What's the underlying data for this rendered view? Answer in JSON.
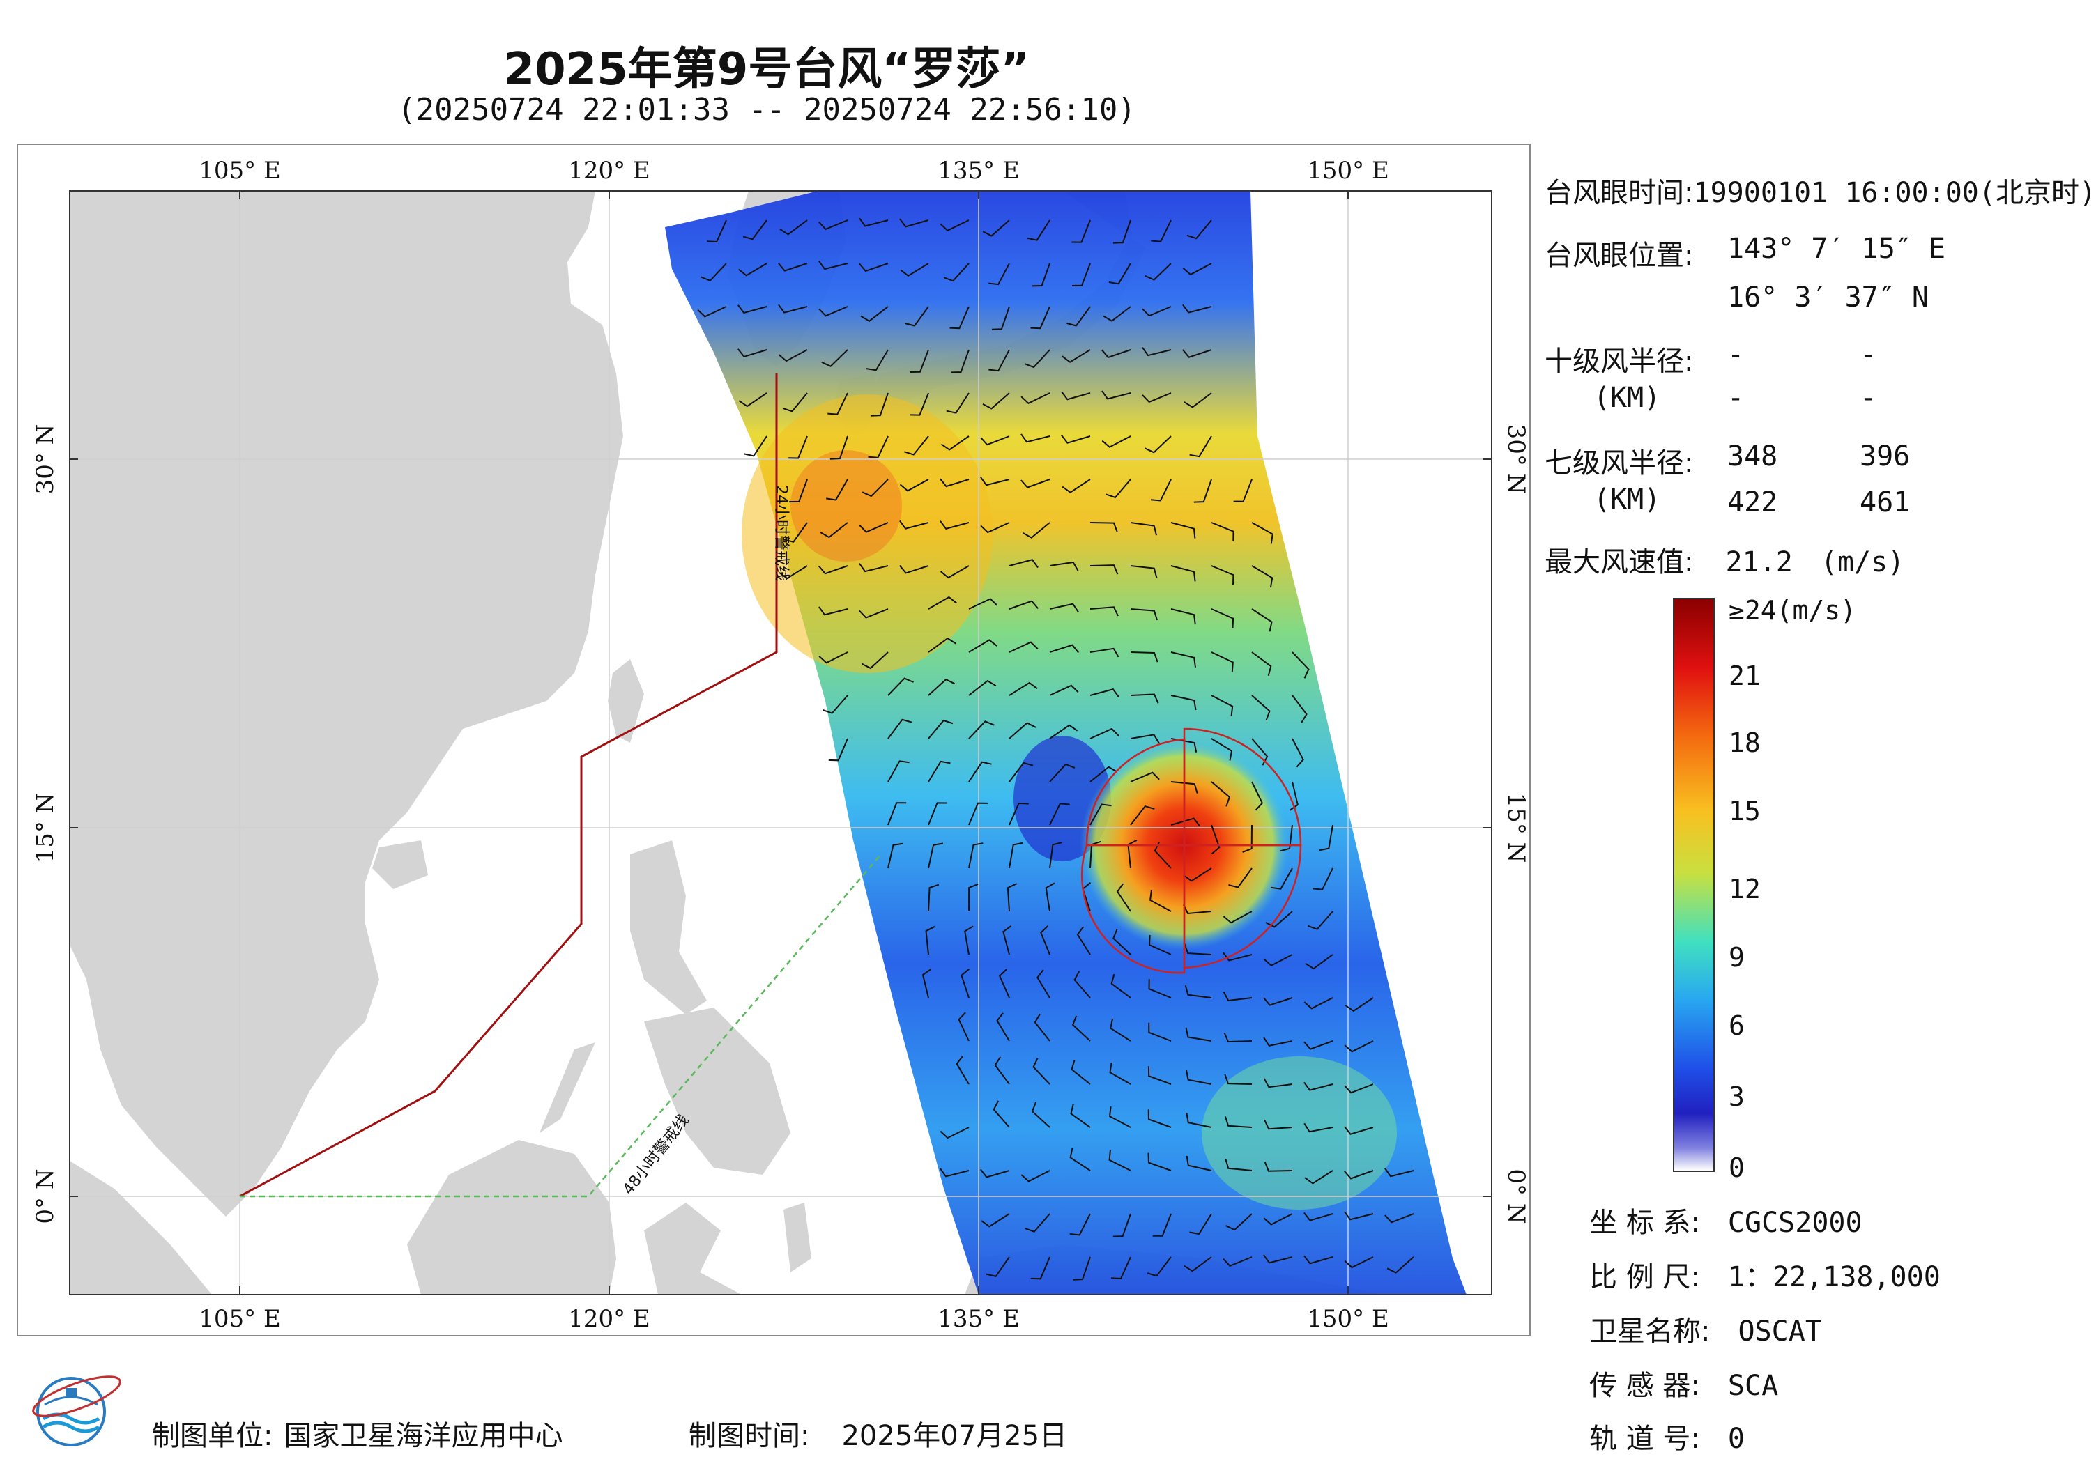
{
  "header": {
    "title": "2025年第9号台风“罗莎”",
    "subtitle": "(20250724 22:01:33 -- 20250724 22:56:10)"
  },
  "map": {
    "lon_labels": [
      "105° E",
      "120° E",
      "135° E",
      "150° E"
    ],
    "lat_labels": [
      "30° N",
      "15° N",
      "0° N"
    ],
    "warning_24h_label": "24小时警戒线",
    "warning_48h_label": "48小时警戒线",
    "colors": {
      "land": "#d4d4d4",
      "ocean": "#ffffff",
      "warning_24h": "#a01010",
      "warning_48h": "#5cb85c",
      "typhoon_circle": "#cc2222"
    }
  },
  "info": {
    "eye_time_label": "台风眼时间:",
    "eye_time_value": "19900101 16:00:00(北京时)",
    "eye_pos_label": "台风眼位置:",
    "eye_lon": "143° 7′ 15″ E",
    "eye_lat": "16° 3′ 37″ N",
    "r10_label": "十级风半径:",
    "r10_unit": "(KM)",
    "r10_values": [
      "-",
      "-",
      "-",
      "-"
    ],
    "r7_label": "七级风半径:",
    "r7_unit": "(KM)",
    "r7_values": [
      "348",
      "396",
      "422",
      "461"
    ],
    "max_wind_label": "最大风速值:",
    "max_wind_value": "21.2",
    "max_wind_unit": "(m/s)"
  },
  "colorbar": {
    "labels": [
      "≥24(m/s)",
      "21",
      "18",
      "15",
      "12",
      "9",
      "6",
      "3",
      "0"
    ]
  },
  "meta": {
    "crs_label": "坐 标 系:",
    "crs_value": "CGCS2000",
    "scale_label": "比 例 尺:",
    "scale_value": "1：22,138,000",
    "satellite_label": "卫星名称:",
    "satellite_value": "OSCAT",
    "sensor_label": "传 感 器:",
    "sensor_value": "SCA",
    "orbit_label": "轨 道 号:",
    "orbit_value": "0"
  },
  "footer": {
    "maker_label": "制图单位:",
    "maker_value": "国家卫星海洋应用中心",
    "date_label": "制图时间:",
    "date_value": "2025年07月25日"
  }
}
